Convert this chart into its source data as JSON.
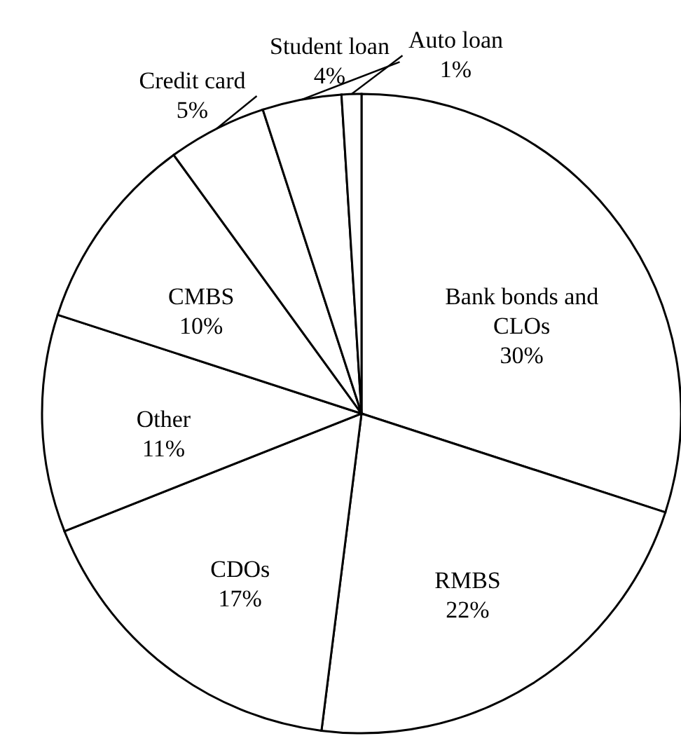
{
  "chart_data": {
    "type": "pie",
    "categories": [
      "Bank bonds and CLOs",
      "RMBS",
      "CDOs",
      "Other",
      "CMBS",
      "Credit card",
      "Student loan",
      "Auto loan"
    ],
    "values": [
      30,
      22,
      17,
      11,
      10,
      5,
      4,
      1
    ],
    "value_labels": [
      "30%",
      "22%",
      "17%",
      "11%",
      "10%",
      "5%",
      "4%",
      "1%"
    ],
    "colors": [
      "#ffffff",
      "#ffffff",
      "#ffffff",
      "#ffffff",
      "#ffffff",
      "#ffffff",
      "#ffffff",
      "#ffffff"
    ],
    "legend": false
  }
}
